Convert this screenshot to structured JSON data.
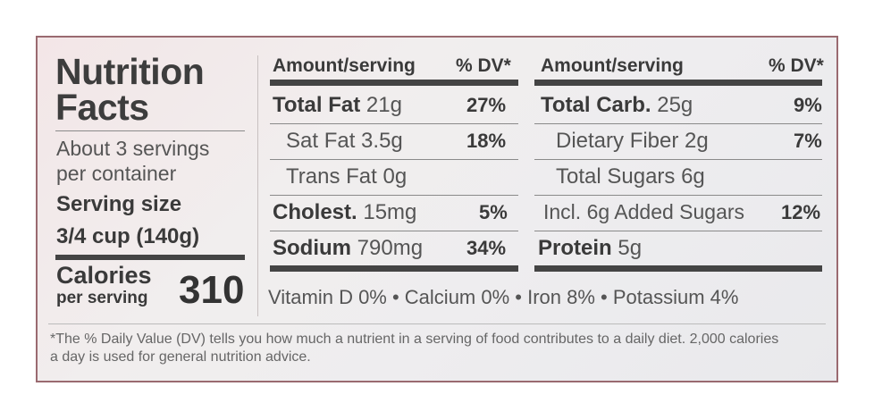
{
  "title_line1": "Nutrition",
  "title_line2": "Facts",
  "servings_line1": "About 3 servings",
  "servings_line2": "per container",
  "serving_size_label": "Serving size",
  "serving_size_value": "3/4 cup (140g)",
  "calories_label": "Calories",
  "calories_sub": "per serving",
  "calories_value": "310",
  "left_header": {
    "amount": "Amount/serving",
    "dv": "% DV*"
  },
  "right_header": {
    "amount": "Amount/serving",
    "dv": "% DV*"
  },
  "left_rows": [
    {
      "name": "Total Fat",
      "amount": "21g",
      "dv": "27%"
    },
    {
      "name": "Sat Fat",
      "amount": "3.5g",
      "dv": "18%"
    },
    {
      "name": "Trans Fat",
      "amount": "0g",
      "dv": ""
    },
    {
      "name": "Cholest.",
      "amount": "15mg",
      "dv": "5%"
    },
    {
      "name": "Sodium",
      "amount": "790mg",
      "dv": "34%"
    }
  ],
  "right_rows": [
    {
      "name": "Total Carb.",
      "amount": "25g",
      "dv": "9%"
    },
    {
      "name": "Dietary Fiber",
      "amount": "2g",
      "dv": "7%"
    },
    {
      "name": "Total Sugars",
      "amount": "6g",
      "dv": ""
    },
    {
      "name": "Incl. 6g Added Sugars",
      "amount": "",
      "dv": "12%"
    },
    {
      "name": "Protein",
      "amount": "5g",
      "dv": ""
    }
  ],
  "vitamins_line": "Vitamin D 0% • Calcium 0% • Iron 8% • Potassium 4%",
  "footnote_line1": "*The % Daily Value (DV) tells you how much a nutrient in a serving of food contributes to a daily diet. 2,000 calories",
  "footnote_line2": "a day is used for general nutrition advice."
}
